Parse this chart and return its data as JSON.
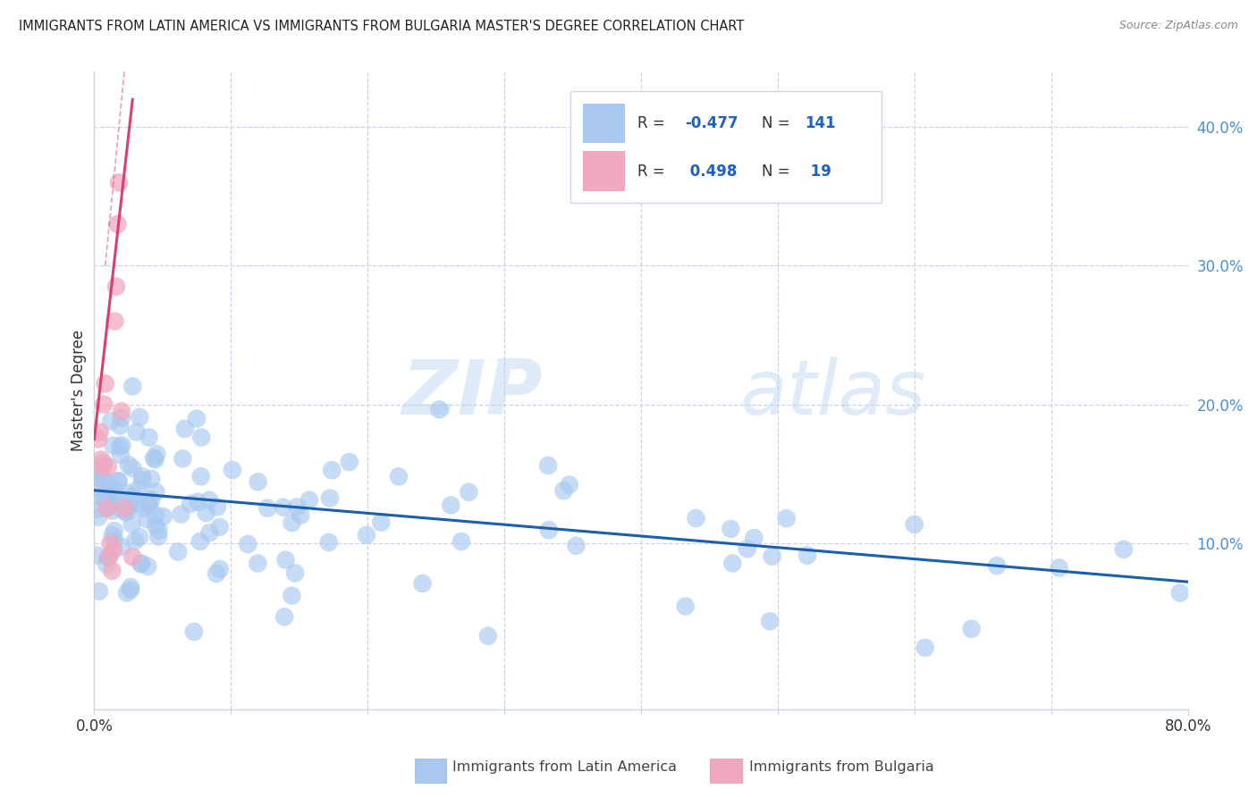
{
  "title": "IMMIGRANTS FROM LATIN AMERICA VS IMMIGRANTS FROM BULGARIA MASTER'S DEGREE CORRELATION CHART",
  "source": "Source: ZipAtlas.com",
  "ylabel": "Master's Degree",
  "watermark_zip": "ZIP",
  "watermark_atlas": "atlas",
  "legend_blue_r": "R = -0.477",
  "legend_blue_n": "N = 141",
  "legend_pink_r": "R =  0.498",
  "legend_pink_n": "N =  19",
  "legend_blue_r_label": "R = ",
  "legend_blue_r_val": "-0.477",
  "legend_pink_r_label": "R = ",
  "legend_pink_r_val": " 0.498",
  "blue_color": "#a8c8f0",
  "pink_color": "#f0a8c0",
  "blue_line_color": "#1a5fad",
  "pink_line_color": "#d94070",
  "grid_color": "#c8d4e8",
  "axis_label_color": "#4a90d0",
  "text_blue": "#2060c0",
  "xlim": [
    0.0,
    0.8
  ],
  "ylim": [
    -0.02,
    0.44
  ],
  "blue_trend_x0": 0.0,
  "blue_trend_x1": 0.8,
  "blue_trend_y0": 0.138,
  "blue_trend_y1": 0.072,
  "pink_trend_x0": 0.0,
  "pink_trend_x1": 0.028,
  "pink_trend_y0": 0.175,
  "pink_trend_y1": 0.42,
  "pink_trend_ext_x0": 0.0,
  "pink_trend_ext_x1": 0.032,
  "pink_trend_ext_y0": 0.08,
  "pink_trend_ext_y1": 0.44,
  "right_ytick_values": [
    0.1,
    0.2,
    0.3,
    0.4
  ],
  "right_ytick_labels": [
    "10.0%",
    "20.0%",
    "30.0%",
    "40.0%"
  ],
  "bottom_legend_blue": "Immigrants from Latin America",
  "bottom_legend_pink": "Immigrants from Bulgaria"
}
